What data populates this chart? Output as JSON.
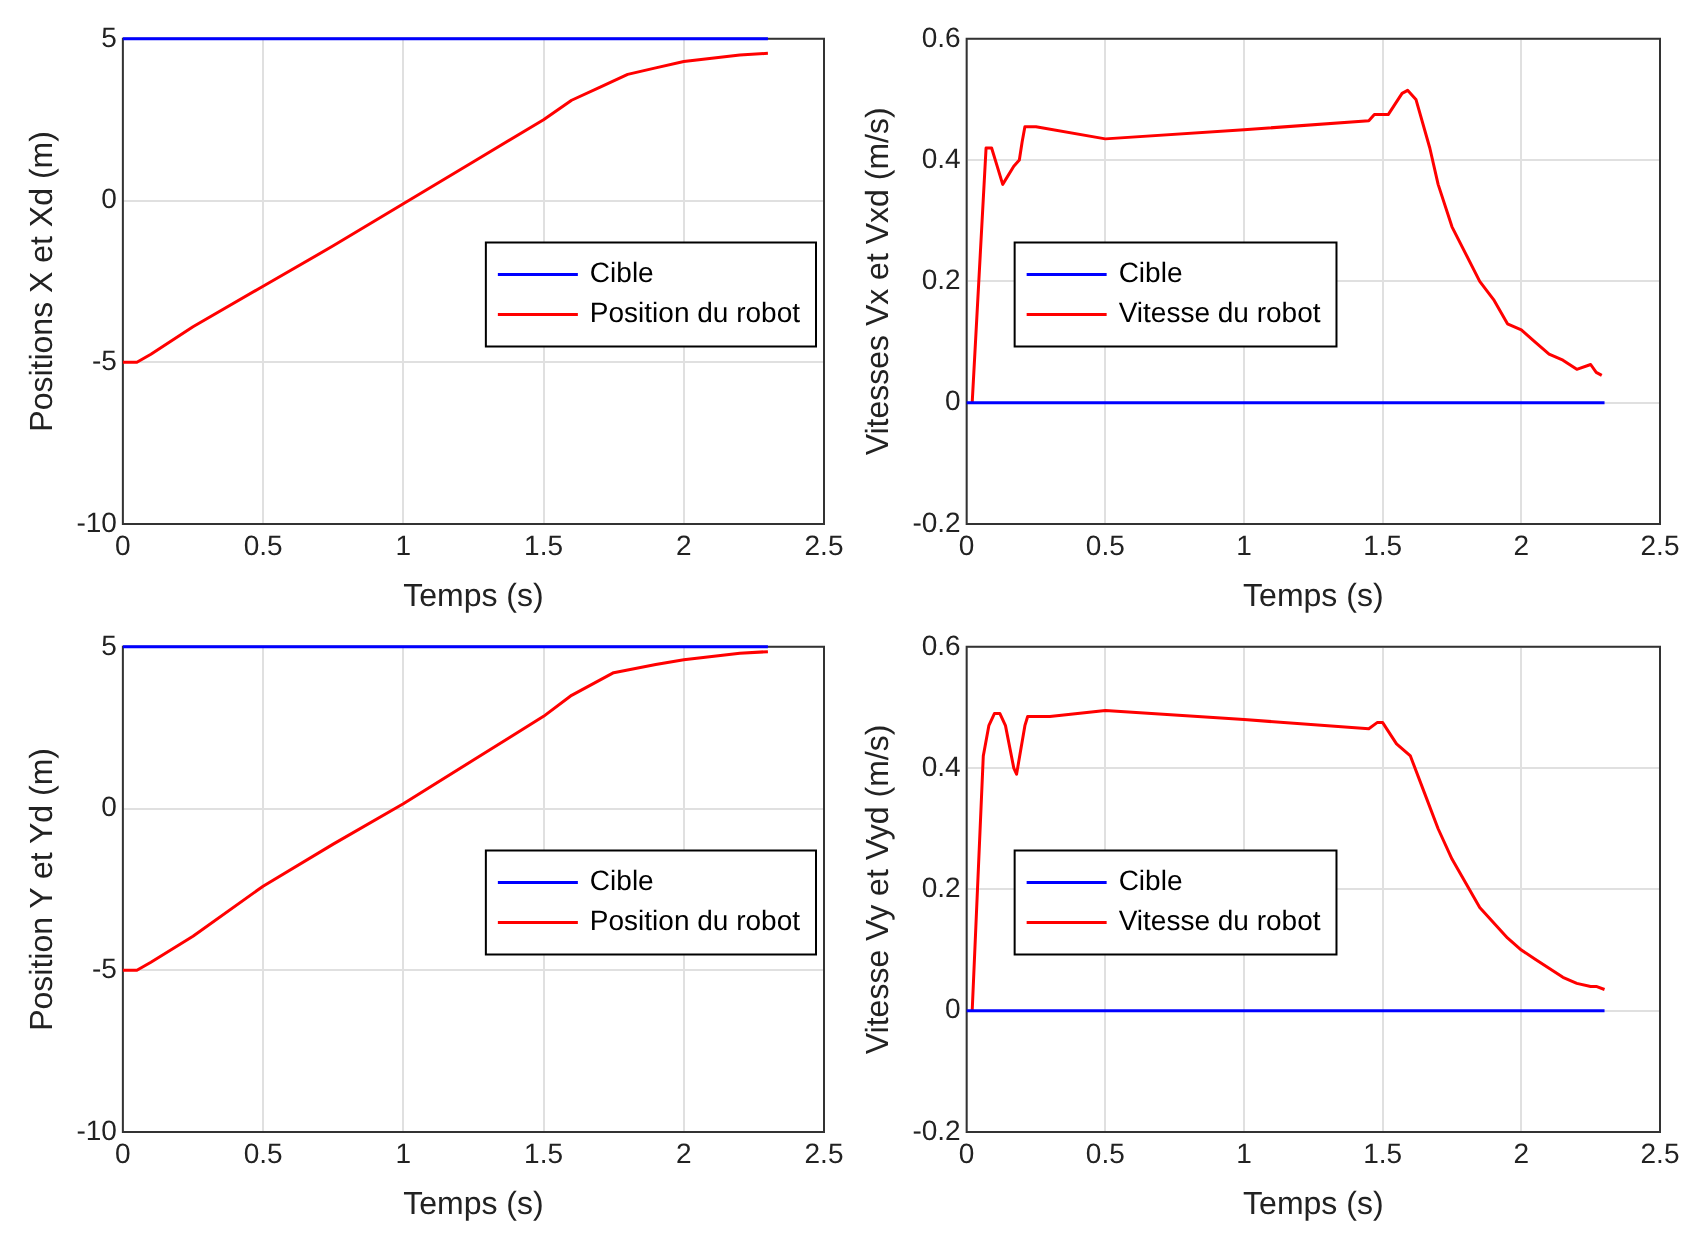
{
  "chart_data": [
    {
      "type": "line",
      "xlabel": "Temps (s)",
      "ylabel": "Positions X et Xd (m)",
      "xlim": [
        0,
        2.5
      ],
      "xticks": [
        0,
        0.5,
        1,
        1.5,
        2,
        2.5
      ],
      "ylim": [
        -10,
        5
      ],
      "yticks": [
        -10,
        -5,
        0,
        5
      ],
      "grid": true,
      "legend": "right",
      "series": [
        {
          "name": "Cible",
          "color": "#0000ff",
          "x": [
            0,
            2.3
          ],
          "values": [
            5,
            5
          ]
        },
        {
          "name": "Position du robot",
          "color": "#ff0000",
          "x": [
            0,
            0.05,
            0.1,
            0.25,
            0.5,
            0.75,
            1,
            1.25,
            1.5,
            1.6,
            1.7,
            1.8,
            1.9,
            2,
            2.1,
            2.2,
            2.3
          ],
          "values": [
            -5,
            -5,
            -4.75,
            -3.9,
            -2.65,
            -1.4,
            -0.1,
            1.2,
            2.5,
            3.1,
            3.5,
            3.9,
            4.1,
            4.3,
            4.4,
            4.5,
            4.55
          ]
        }
      ]
    },
    {
      "type": "line",
      "xlabel": "Temps (s)",
      "ylabel": "Vitesses Vx et Vxd (m/s)",
      "xlim": [
        0,
        2.5
      ],
      "xticks": [
        0,
        0.5,
        1,
        1.5,
        2,
        2.5
      ],
      "ylim": [
        -0.2,
        0.6
      ],
      "yticks": [
        -0.2,
        0,
        0.2,
        0.4,
        0.6
      ],
      "grid": true,
      "legend": "left",
      "series": [
        {
          "name": "Cible",
          "color": "#0000ff",
          "x": [
            0,
            2.3
          ],
          "values": [
            0,
            0
          ]
        },
        {
          "name": "Vitesse du robot",
          "color": "#ff0000",
          "x": [
            0.02,
            0.07,
            0.09,
            0.11,
            0.13,
            0.17,
            0.19,
            0.2,
            0.21,
            0.25,
            0.5,
            1,
            1.45,
            1.47,
            1.52,
            1.57,
            1.59,
            1.62,
            1.67,
            1.7,
            1.75,
            1.85,
            1.9,
            1.95,
            2,
            2.05,
            2.1,
            2.15,
            2.2,
            2.25,
            2.27,
            2.29
          ],
          "values": [
            0,
            0.42,
            0.42,
            0.39,
            0.36,
            0.39,
            0.4,
            0.43,
            0.455,
            0.455,
            0.435,
            0.45,
            0.465,
            0.475,
            0.475,
            0.51,
            0.515,
            0.5,
            0.42,
            0.36,
            0.29,
            0.2,
            0.17,
            0.13,
            0.12,
            0.1,
            0.08,
            0.07,
            0.055,
            0.063,
            0.05,
            0.045
          ]
        }
      ]
    },
    {
      "type": "line",
      "xlabel": "Temps (s)",
      "ylabel": "Position Y et Yd (m)",
      "xlim": [
        0,
        2.5
      ],
      "xticks": [
        0,
        0.5,
        1,
        1.5,
        2,
        2.5
      ],
      "ylim": [
        -10,
        5
      ],
      "yticks": [
        -10,
        -5,
        0,
        5
      ],
      "grid": true,
      "legend": "right",
      "series": [
        {
          "name": "Cible",
          "color": "#0000ff",
          "x": [
            0,
            2.3
          ],
          "values": [
            5,
            5
          ]
        },
        {
          "name": "Position du robot",
          "color": "#ff0000",
          "x": [
            0,
            0.05,
            0.1,
            0.25,
            0.5,
            0.75,
            1,
            1.25,
            1.5,
            1.6,
            1.75,
            1.9,
            2,
            2.1,
            2.2,
            2.3
          ],
          "values": [
            -5,
            -5,
            -4.75,
            -3.95,
            -2.4,
            -1.1,
            0.15,
            1.5,
            2.85,
            3.5,
            4.2,
            4.45,
            4.6,
            4.7,
            4.8,
            4.85
          ]
        }
      ]
    },
    {
      "type": "line",
      "xlabel": "Temps (s)",
      "ylabel": "Vitesse Vy et Vyd (m/s)",
      "xlim": [
        0,
        2.5
      ],
      "xticks": [
        0,
        0.5,
        1,
        1.5,
        2,
        2.5
      ],
      "ylim": [
        -0.2,
        0.6
      ],
      "yticks": [
        -0.2,
        0,
        0.2,
        0.4,
        0.6
      ],
      "grid": true,
      "legend": "left",
      "series": [
        {
          "name": "Cible",
          "color": "#0000ff",
          "x": [
            0,
            2.3
          ],
          "values": [
            0,
            0
          ]
        },
        {
          "name": "Vitesse du robot",
          "color": "#ff0000",
          "x": [
            0.02,
            0.06,
            0.08,
            0.1,
            0.12,
            0.14,
            0.17,
            0.18,
            0.21,
            0.22,
            0.3,
            0.5,
            1,
            1.45,
            1.48,
            1.5,
            1.55,
            1.6,
            1.65,
            1.7,
            1.75,
            1.85,
            1.95,
            2,
            2.05,
            2.1,
            2.15,
            2.2,
            2.25,
            2.27,
            2.3
          ],
          "values": [
            0,
            0.42,
            0.47,
            0.49,
            0.49,
            0.47,
            0.4,
            0.39,
            0.47,
            0.485,
            0.485,
            0.495,
            0.48,
            0.465,
            0.475,
            0.475,
            0.44,
            0.42,
            0.36,
            0.3,
            0.25,
            0.17,
            0.12,
            0.1,
            0.085,
            0.07,
            0.055,
            0.045,
            0.04,
            0.04,
            0.035
          ]
        }
      ]
    }
  ]
}
